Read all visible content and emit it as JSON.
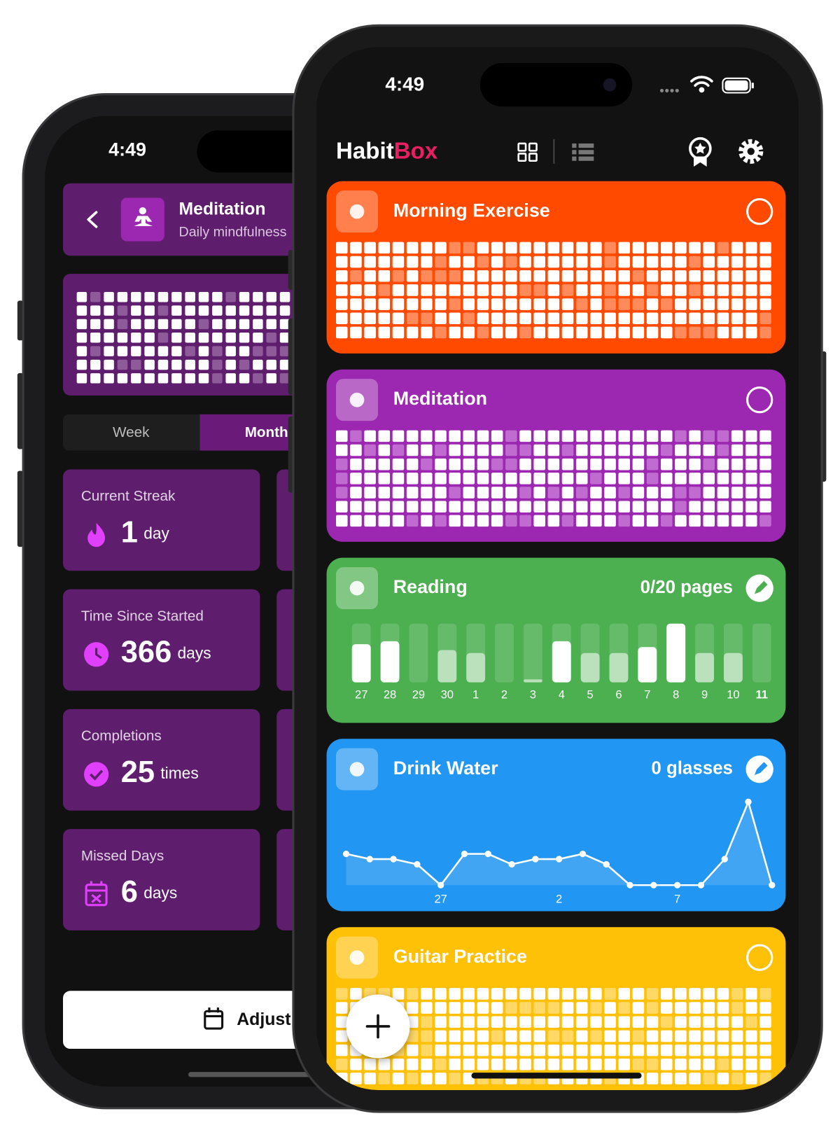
{
  "back_phone": {
    "time": "4:49",
    "header": {
      "title": "Meditation",
      "subtitle": "Daily mindfulness"
    },
    "tabs": [
      "Week",
      "Month"
    ],
    "stats": [
      {
        "label": "Current Streak",
        "value": 1,
        "unit": "day"
      },
      {
        "label": "Time Since Started",
        "value": 366,
        "unit": "days"
      },
      {
        "label": "Completions",
        "value": 25,
        "unit": "times"
      },
      {
        "label": "Missed Days",
        "value": 6,
        "unit": "days"
      }
    ],
    "button": "Adjust"
  },
  "front_phone": {
    "time": "4:49",
    "app_title": {
      "first": "Habit",
      "second": "Box"
    },
    "habits": [
      {
        "name": "Morning Exercise"
      },
      {
        "name": "Meditation"
      },
      {
        "name": "Reading",
        "progress": "0/20 pages",
        "chart": {
          "type": "bar",
          "categories": [
            "27",
            "28",
            "29",
            "30",
            "1",
            "2",
            "3",
            "4",
            "5",
            "6",
            "7",
            "8",
            "9",
            "10",
            "11"
          ],
          "values": [
            13,
            14,
            0,
            11,
            10,
            0,
            1,
            14,
            10,
            10,
            12,
            20,
            10,
            10,
            0
          ],
          "ylim": [
            0,
            20
          ]
        }
      },
      {
        "name": "Drink Water",
        "progress": "0 glasses",
        "chart": {
          "type": "line",
          "categories": [
            null,
            null,
            null,
            null,
            "27",
            null,
            null,
            null,
            null,
            "2",
            null,
            null,
            null,
            null,
            "7",
            null,
            null,
            null,
            null
          ],
          "values": [
            3,
            2.5,
            2.5,
            2,
            0,
            3,
            3,
            2,
            2.5,
            2.5,
            3,
            2,
            0,
            0,
            0,
            0,
            2.5,
            8,
            0
          ],
          "ylim": [
            0,
            8
          ]
        }
      },
      {
        "name": "Guitar Practice"
      }
    ]
  }
}
